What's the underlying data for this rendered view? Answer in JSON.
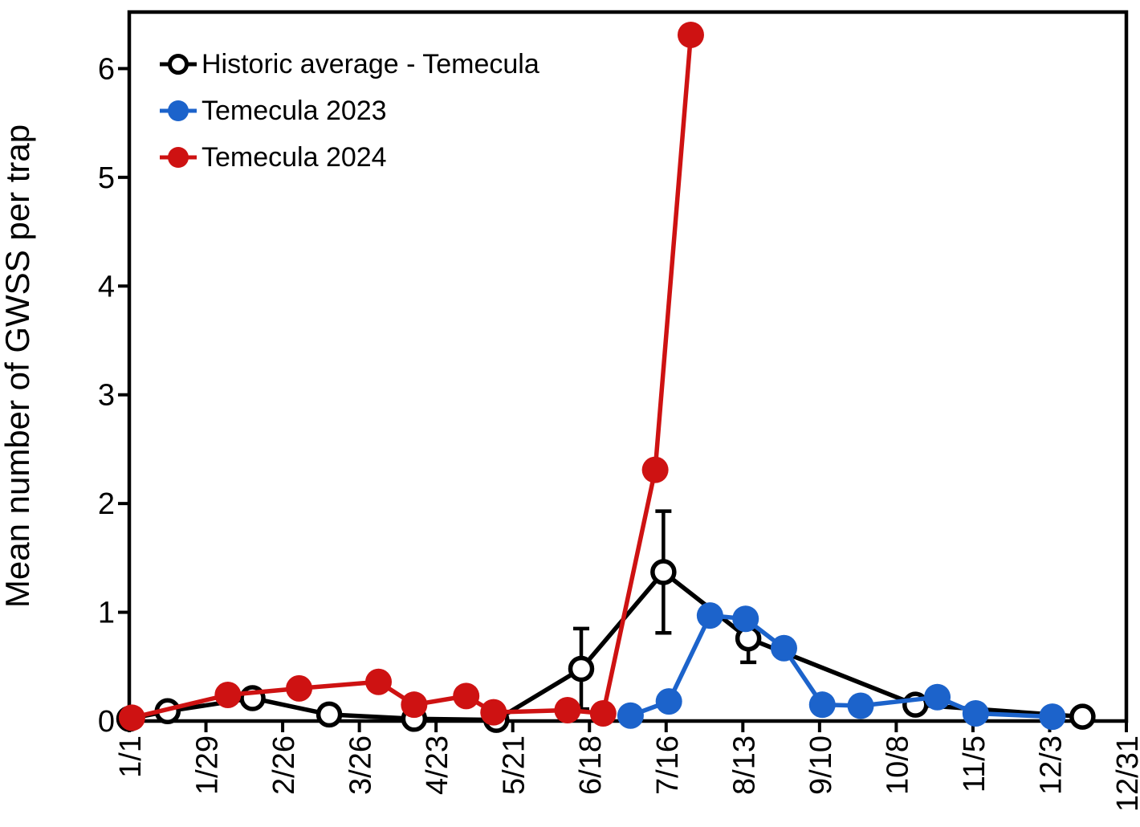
{
  "chart_data": {
    "type": "line",
    "title": "",
    "xlabel": "",
    "ylabel": "Mean number of GWSS per trap",
    "grid": false,
    "legend_position": "top-left-inside",
    "x_axis": {
      "tick_labels": [
        "1/1",
        "1/29",
        "2/26",
        "3/26",
        "4/23",
        "5/21",
        "6/18",
        "7/16",
        "8/13",
        "9/10",
        "10/8",
        "11/5",
        "12/3",
        "12/31"
      ],
      "tick_days": [
        0,
        28,
        56,
        84,
        112,
        140,
        168,
        196,
        224,
        252,
        280,
        308,
        336,
        364
      ],
      "range_days": [
        0,
        364
      ]
    },
    "y_axis": {
      "ticks": [
        0,
        1,
        2,
        3,
        4,
        5,
        6
      ],
      "range": [
        0,
        6.52
      ]
    },
    "series": [
      {
        "name": "Historic average - Temecula",
        "color": "#000000",
        "marker": "open-circle",
        "points": [
          {
            "date": "1/1",
            "day": 0,
            "value": 0.02
          },
          {
            "date": "1/15",
            "day": 14,
            "value": 0.09
          },
          {
            "date": "2/15",
            "day": 45,
            "value": 0.21
          },
          {
            "date": "3/15",
            "day": 73,
            "value": 0.06
          },
          {
            "date": "4/15",
            "day": 104,
            "value": 0.02
          },
          {
            "date": "5/15",
            "day": 134,
            "value": 0.01
          },
          {
            "date": "6/15",
            "day": 165,
            "value": 0.48,
            "err": 0.37
          },
          {
            "date": "7/15",
            "day": 195,
            "value": 1.37,
            "err": 0.56
          },
          {
            "date": "8/15",
            "day": 226,
            "value": 0.76,
            "err": 0.22
          },
          {
            "date": "10/15",
            "day": 287,
            "value": 0.15
          },
          {
            "date": "12/15",
            "day": 348,
            "value": 0.04
          }
        ]
      },
      {
        "name": "Temecula 2023",
        "color": "#1C63CB",
        "marker": "filled-circle",
        "points": [
          {
            "date": "7/2",
            "day": 183,
            "value": 0.05
          },
          {
            "date": "7/16",
            "day": 197,
            "value": 0.18
          },
          {
            "date": "7/31",
            "day": 212,
            "value": 0.97
          },
          {
            "date": "8/13",
            "day": 225,
            "value": 0.94
          },
          {
            "date": "8/27",
            "day": 239,
            "value": 0.67
          },
          {
            "date": "9/10",
            "day": 253,
            "value": 0.15
          },
          {
            "date": "9/24",
            "day": 267,
            "value": 0.14
          },
          {
            "date": "10/22",
            "day": 295,
            "value": 0.22
          },
          {
            "date": "11/5",
            "day": 309,
            "value": 0.07
          },
          {
            "date": "12/3",
            "day": 337,
            "value": 0.04
          }
        ]
      },
      {
        "name": "Temecula 2024",
        "color": "#CE1212",
        "marker": "filled-circle",
        "points": [
          {
            "date": "1/1",
            "day": 1,
            "value": 0.03
          },
          {
            "date": "2/5",
            "day": 36,
            "value": 0.24
          },
          {
            "date": "3/3",
            "day": 62,
            "value": 0.3
          },
          {
            "date": "4/1",
            "day": 91,
            "value": 0.36
          },
          {
            "date": "4/13",
            "day": 104,
            "value": 0.15
          },
          {
            "date": "5/3",
            "day": 123,
            "value": 0.23
          },
          {
            "date": "5/13",
            "day": 133,
            "value": 0.08
          },
          {
            "date": "6/9",
            "day": 160,
            "value": 0.1
          },
          {
            "date": "6/22",
            "day": 173,
            "value": 0.07
          },
          {
            "date": "7/11",
            "day": 192,
            "value": 2.31
          },
          {
            "date": "7/24",
            "day": 205,
            "value": 6.31
          }
        ]
      }
    ]
  },
  "legend": {
    "items": [
      {
        "label": "Historic average - Temecula"
      },
      {
        "label": "Temecula 2023"
      },
      {
        "label": "Temecula 2024"
      }
    ]
  }
}
